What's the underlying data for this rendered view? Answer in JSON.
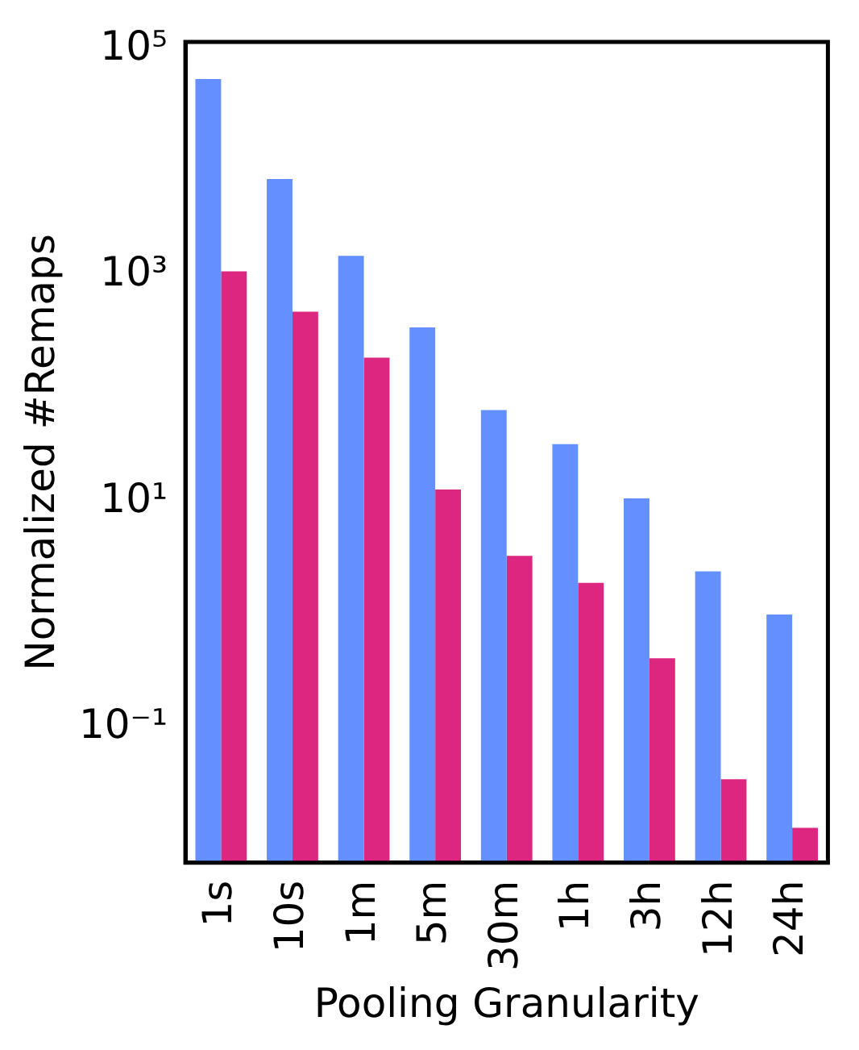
{
  "chart_data": {
    "type": "bar",
    "xlabel": "Pooling Granularity",
    "ylabel": "Normalized #Remaps",
    "categories": [
      "1s",
      "10s",
      "1m",
      "5m",
      "30m",
      "1h",
      "3h",
      "12h",
      "24h"
    ],
    "series": [
      {
        "color": "#648fff",
        "values": [
          54000,
          7060,
          1480,
          345,
          64,
          32,
          10.6,
          2.4,
          1.0
        ]
      },
      {
        "color": "#dc267f",
        "values": [
          1080,
          475,
          186,
          12.7,
          3.3,
          1.9,
          0.41,
          0.035,
          0.013
        ]
      }
    ],
    "log": true,
    "ylim": [
      0.0064,
      115000
    ],
    "yticks": [
      {
        "value": 0.1,
        "label": "10⁻¹"
      },
      {
        "value": 10,
        "label": "10¹"
      },
      {
        "value": 1000,
        "label": "10³"
      },
      {
        "value": 100000,
        "label": "10⁵"
      }
    ],
    "grid": false,
    "legend": false
  }
}
